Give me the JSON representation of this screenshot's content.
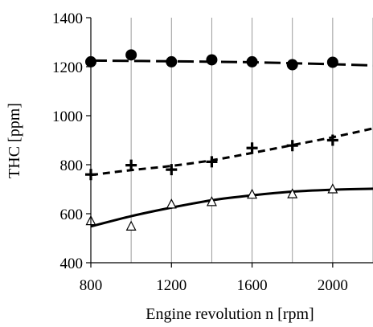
{
  "chart_data": {
    "type": "scatter",
    "title": "",
    "xlabel": "Engine revolution  n  [rpm]",
    "ylabel": "THC  [ppm]",
    "xlim": [
      800,
      2200
    ],
    "ylim": [
      400,
      1400
    ],
    "xticks": [
      800,
      1200,
      1600,
      2000
    ],
    "yticks": [
      400,
      600,
      800,
      1000,
      1200,
      1400
    ],
    "grid": "vertical",
    "legend": "none",
    "series": [
      {
        "marker": "circle",
        "line": "long-dash",
        "color": "#000000",
        "points": [
          [
            800,
            1220
          ],
          [
            1000,
            1248
          ],
          [
            1200,
            1220
          ],
          [
            1400,
            1228
          ],
          [
            1600,
            1220
          ],
          [
            1800,
            1208
          ],
          [
            2000,
            1218
          ]
        ],
        "fit": [
          [
            800,
            1225
          ],
          [
            1200,
            1222
          ],
          [
            1600,
            1218
          ],
          [
            2000,
            1210
          ],
          [
            2200,
            1205
          ]
        ]
      },
      {
        "marker": "plus",
        "line": "short-dash",
        "color": "#000000",
        "points": [
          [
            800,
            760
          ],
          [
            1000,
            798
          ],
          [
            1200,
            780
          ],
          [
            1400,
            812
          ],
          [
            1600,
            868
          ],
          [
            1800,
            878
          ],
          [
            2000,
            900
          ]
        ],
        "fit": [
          [
            800,
            758
          ],
          [
            1000,
            778
          ],
          [
            1200,
            795
          ],
          [
            1400,
            818
          ],
          [
            1600,
            848
          ],
          [
            1800,
            880
          ],
          [
            2000,
            912
          ],
          [
            2200,
            948
          ]
        ]
      },
      {
        "marker": "triangle",
        "line": "solid",
        "color": "#000000",
        "points": [
          [
            800,
            570
          ],
          [
            1000,
            548
          ],
          [
            1200,
            638
          ],
          [
            1400,
            648
          ],
          [
            1600,
            678
          ],
          [
            1800,
            680
          ],
          [
            2000,
            700
          ]
        ],
        "fit": [
          [
            800,
            548
          ],
          [
            1000,
            590
          ],
          [
            1200,
            625
          ],
          [
            1400,
            655
          ],
          [
            1600,
            675
          ],
          [
            1800,
            690
          ],
          [
            2000,
            698
          ],
          [
            2200,
            702
          ]
        ]
      }
    ]
  }
}
